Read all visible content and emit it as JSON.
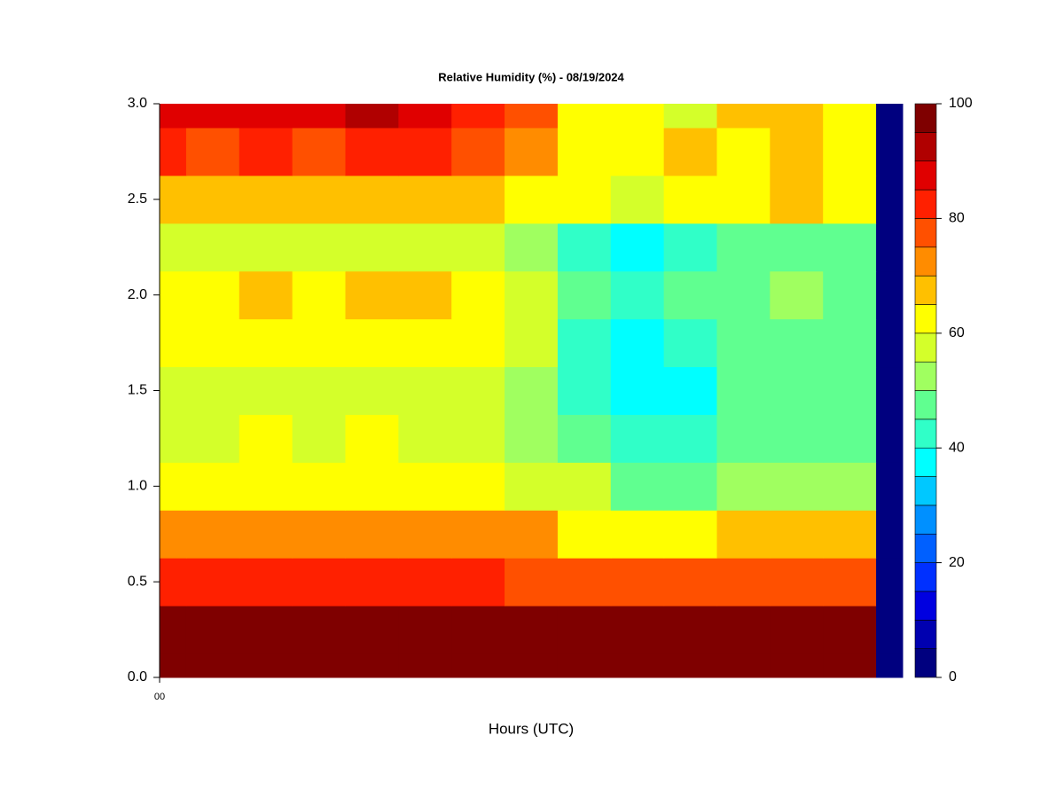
{
  "chart_data": {
    "type": "filled-contour",
    "title": "Relative Humidity (%) - 08/19/2024",
    "xlabel": "Hours (UTC)",
    "x": [
      0,
      1,
      2,
      3,
      4,
      5,
      6,
      7,
      8,
      9,
      10,
      11,
      12,
      13,
      14
    ],
    "y": [
      0,
      0.25,
      0.5,
      0.75,
      1,
      1.25,
      1.5,
      1.75,
      2,
      2.25,
      2.5,
      2.75,
      3
    ],
    "z": [
      [
        98,
        98,
        98,
        98,
        98,
        98,
        98,
        98,
        98,
        98,
        98,
        98,
        98,
        98,
        0
      ],
      [
        96,
        95,
        96,
        95,
        96,
        95,
        96,
        96,
        96,
        96,
        96,
        95,
        96,
        95,
        0
      ],
      [
        82,
        80,
        82,
        80,
        81,
        80,
        80,
        78,
        76,
        75,
        75,
        77,
        76,
        75,
        0
      ],
      [
        71,
        72,
        72,
        73,
        72,
        73,
        72,
        70,
        63,
        63,
        64,
        68,
        68,
        68,
        0
      ],
      [
        62,
        61,
        62,
        61,
        62,
        61,
        61,
        57,
        55,
        48,
        48,
        50,
        52,
        53,
        0
      ],
      [
        58,
        58,
        61,
        58,
        61,
        58,
        58,
        53,
        46,
        44,
        43,
        46,
        48,
        48,
        0
      ],
      [
        57,
        57,
        57,
        57,
        57,
        57,
        57,
        52,
        42,
        37,
        38,
        45,
        45,
        46,
        0
      ],
      [
        60,
        61,
        62,
        61,
        62,
        61,
        60,
        56,
        44,
        38,
        42,
        47,
        47,
        47,
        0
      ],
      [
        63,
        64,
        66,
        64,
        66,
        66,
        63,
        58,
        48,
        40,
        45,
        48,
        50,
        48,
        0
      ],
      [
        57,
        57,
        56,
        57,
        56,
        57,
        57,
        52,
        44,
        38,
        42,
        45,
        46,
        46,
        0
      ],
      [
        68,
        67,
        67,
        67,
        68,
        68,
        67,
        62,
        60,
        58,
        60,
        62,
        65,
        63,
        0
      ],
      [
        80,
        79,
        81,
        79,
        81,
        80,
        78,
        72,
        62,
        62,
        68,
        62,
        68,
        62,
        0
      ],
      [
        88,
        85,
        88,
        85,
        90,
        86,
        82,
        75,
        62,
        60,
        58,
        68,
        65,
        62,
        0
      ]
    ],
    "xlim": [
      0,
      14
    ],
    "xticks": [
      {
        "value": 0,
        "label": "00"
      }
    ],
    "ylim": [
      0,
      3
    ],
    "yticks": [
      {
        "value": 0,
        "label": "0.0"
      },
      0.5,
      {
        "value": 1,
        "label": "1.0"
      },
      1.5,
      {
        "value": 2,
        "label": "2.0"
      },
      2.5,
      {
        "value": 3,
        "label": "3.0"
      }
    ],
    "levels": [
      0,
      5,
      10,
      15,
      20,
      25,
      30,
      35,
      40,
      45,
      50,
      55,
      60,
      65,
      70,
      75,
      80,
      85,
      90,
      95,
      100
    ],
    "colors": [
      "#00007f",
      "#0000b0",
      "#0000e0",
      "#0030ff",
      "#0060ff",
      "#0090ff",
      "#00c8ff",
      "#00ffff",
      "#30ffc8",
      "#60ff90",
      "#a0ff60",
      "#d4ff2a",
      "#ffff00",
      "#ffc000",
      "#ff8c00",
      "#ff5000",
      "#ff2000",
      "#e00000",
      "#b00000",
      "#7f0000"
    ],
    "clim": [
      0,
      100
    ],
    "cticks": [
      0,
      20,
      40,
      60,
      80,
      100
    ]
  }
}
